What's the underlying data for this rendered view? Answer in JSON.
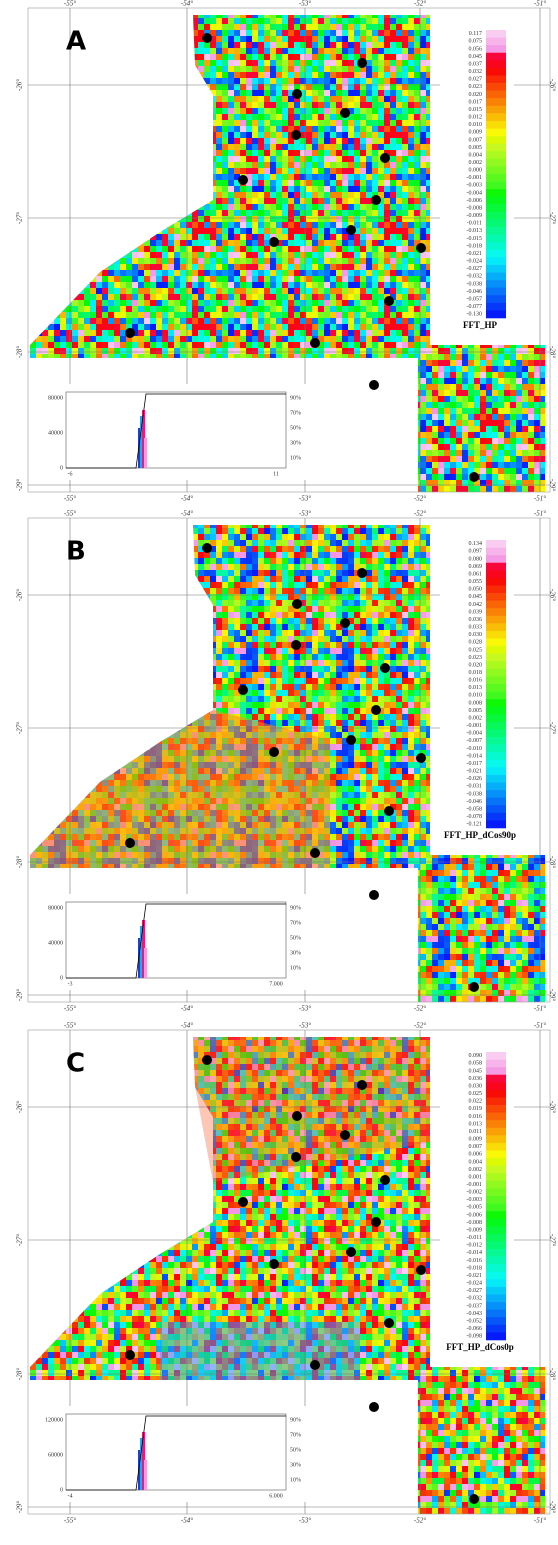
{
  "panels": [
    {
      "label": "A",
      "title": "FFT_HP",
      "colorbar_labels": [
        "0.117",
        "0.075",
        "0.056",
        "0.045",
        "0.037",
        "0.032",
        "0.027",
        "0.023",
        "0.020",
        "0.017",
        "0.015",
        "0.012",
        "0.010",
        "0.009",
        "0.007",
        "0.005",
        "0.004",
        "0.002",
        "0.000",
        "-0.001",
        "-0.003",
        "-0.004",
        "-0.006",
        "-0.008",
        "-0.009",
        "-0.011",
        "-0.013",
        "-0.015",
        "-0.018",
        "-0.021",
        "-0.024",
        "-0.027",
        "-0.032",
        "-0.038",
        "-0.046",
        "-0.057",
        "-0.077",
        "-0.130"
      ],
      "lon_labels": [
        "-55°",
        "-54°",
        "-53°",
        "-52°",
        "-51°"
      ],
      "lat_labels": [
        "-26°",
        "-27°",
        "-28°",
        "-29°"
      ],
      "hist_y_ticks": [
        "80000",
        "40000",
        "0"
      ],
      "hist_x_ticks": [
        "-6",
        "11"
      ],
      "hist_pct_ticks": [
        "90%",
        "70%",
        "50%",
        "30%",
        "10%"
      ]
    },
    {
      "label": "B",
      "title": "FFT_HP_dCos90p",
      "colorbar_labels": [
        "0.134",
        "0.097",
        "0.080",
        "0.069",
        "0.061",
        "0.055",
        "0.050",
        "0.045",
        "0.042",
        "0.039",
        "0.036",
        "0.033",
        "0.030",
        "0.028",
        "0.025",
        "0.023",
        "0.020",
        "0.018",
        "0.016",
        "0.013",
        "0.010",
        "0.008",
        "0.005",
        "0.002",
        "-0.001",
        "-0.004",
        "-0.007",
        "-0.010",
        "-0.014",
        "-0.017",
        "-0.021",
        "-0.026",
        "-0.031",
        "-0.038",
        "-0.046",
        "-0.058",
        "-0.078",
        "-0.121"
      ],
      "lon_labels": [
        "-55°",
        "-54°",
        "-53°",
        "-52°",
        "-51°"
      ],
      "lat_labels": [
        "-26°",
        "-27°",
        "-28°",
        "-29°"
      ],
      "hist_y_ticks": [
        "80000",
        "40000",
        "0"
      ],
      "hist_x_ticks": [
        "-3",
        "7.000"
      ],
      "hist_pct_ticks": [
        "90%",
        "70%",
        "50%",
        "30%",
        "10%"
      ]
    },
    {
      "label": "C",
      "title": "FFT_HP_dCos0p",
      "colorbar_labels": [
        "0.090",
        "0.058",
        "0.045",
        "0.036",
        "0.030",
        "0.025",
        "0.022",
        "0.019",
        "0.016",
        "0.013",
        "0.011",
        "0.009",
        "0.007",
        "0.006",
        "0.004",
        "0.002",
        "0.001",
        "-0.001",
        "-0.002",
        "-0.003",
        "-0.005",
        "-0.006",
        "-0.008",
        "-0.009",
        "-0.011",
        "-0.012",
        "-0.014",
        "-0.016",
        "-0.018",
        "-0.021",
        "-0.024",
        "-0.027",
        "-0.032",
        "-0.037",
        "-0.043",
        "-0.052",
        "-0.066",
        "-0.098"
      ],
      "lon_labels": [
        "-55°",
        "-54°",
        "-53°",
        "-52°",
        "-51°"
      ],
      "lat_labels": [
        "-26°",
        "-27°",
        "-28°",
        "-29°"
      ],
      "hist_y_ticks": [
        "120000",
        "60000",
        "0"
      ],
      "hist_x_ticks": [
        "-4",
        "6.000"
      ],
      "hist_pct_ticks": [
        "90%",
        "70%",
        "50%",
        "30%",
        "10%"
      ]
    }
  ]
}
